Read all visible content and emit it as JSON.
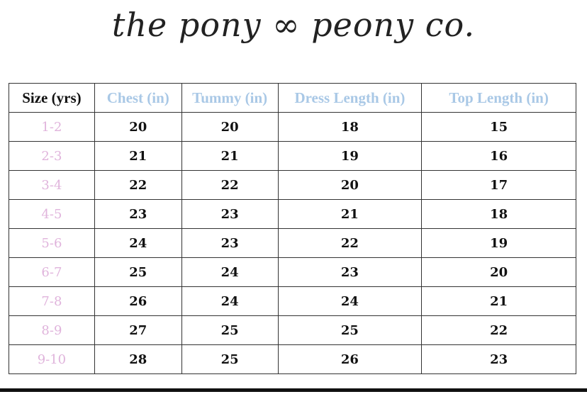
{
  "logo": "the pony ∞ peony co.",
  "colors": {
    "header": "#a9c8e6",
    "size": "#e0b4dc",
    "text": "#111111"
  },
  "table": {
    "headers": [
      "Size (yrs)",
      "Chest (in)",
      "Tummy (in)",
      "Dress Length (in)",
      "Top Length (in)"
    ],
    "rows": [
      [
        "1-2",
        "20",
        "20",
        "18",
        "15"
      ],
      [
        "2-3",
        "21",
        "21",
        "19",
        "16"
      ],
      [
        "3-4",
        "22",
        "22",
        "20",
        "17"
      ],
      [
        "4-5",
        "23",
        "23",
        "21",
        "18"
      ],
      [
        "5-6",
        "24",
        "23",
        "22",
        "19"
      ],
      [
        "6-7",
        "25",
        "24",
        "23",
        "20"
      ],
      [
        "7-8",
        "26",
        "24",
        "24",
        "21"
      ],
      [
        "8-9",
        "27",
        "25",
        "25",
        "22"
      ],
      [
        "9-10",
        "28",
        "25",
        "26",
        "23"
      ]
    ]
  }
}
